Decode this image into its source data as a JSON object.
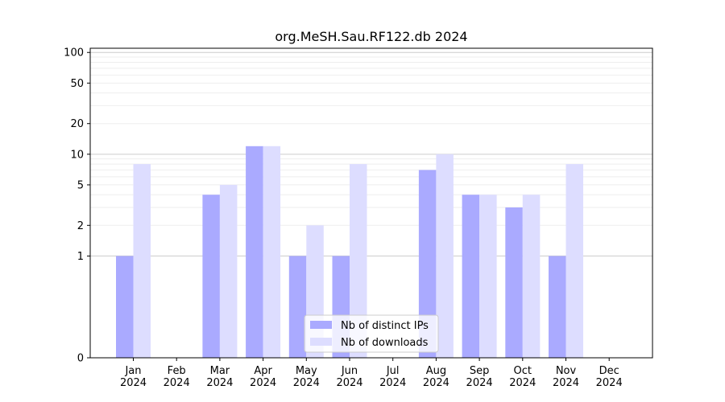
{
  "chart_data": {
    "type": "bar",
    "title": "org.MeSH.Sau.RF122.db 2024",
    "xlabel": "",
    "ylabel": "",
    "y_scale": "symlog",
    "ylim": [
      0,
      110
    ],
    "y_ticks": [
      0,
      1,
      2,
      5,
      10,
      20,
      50,
      100
    ],
    "y_tick_labels": [
      "0",
      "1",
      "2",
      "5",
      "10",
      "20",
      "50",
      "100"
    ],
    "categories": [
      "Jan\n2024",
      "Feb\n2024",
      "Mar\n2024",
      "Apr\n2024",
      "May\n2024",
      "Jun\n2024",
      "Jul\n2024",
      "Aug\n2024",
      "Sep\n2024",
      "Oct\n2024",
      "Nov\n2024",
      "Dec\n2024"
    ],
    "category_lines": [
      [
        "Jan",
        "2024"
      ],
      [
        "Feb",
        "2024"
      ],
      [
        "Mar",
        "2024"
      ],
      [
        "Apr",
        "2024"
      ],
      [
        "May",
        "2024"
      ],
      [
        "Jun",
        "2024"
      ],
      [
        "Jul",
        "2024"
      ],
      [
        "Aug",
        "2024"
      ],
      [
        "Sep",
        "2024"
      ],
      [
        "Oct",
        "2024"
      ],
      [
        "Nov",
        "2024"
      ],
      [
        "Dec",
        "2024"
      ]
    ],
    "series": [
      {
        "name": "Nb of distinct IPs",
        "color": "#aaaaff",
        "values": [
          1,
          0,
          4,
          12,
          1,
          1,
          0,
          7,
          4,
          3,
          1,
          0
        ]
      },
      {
        "name": "Nb of downloads",
        "color": "#ddddff",
        "values": [
          8,
          0,
          5,
          12,
          2,
          8,
          0,
          10,
          4,
          4,
          8,
          0
        ]
      }
    ],
    "grid": true,
    "legend_position": "lower center"
  }
}
